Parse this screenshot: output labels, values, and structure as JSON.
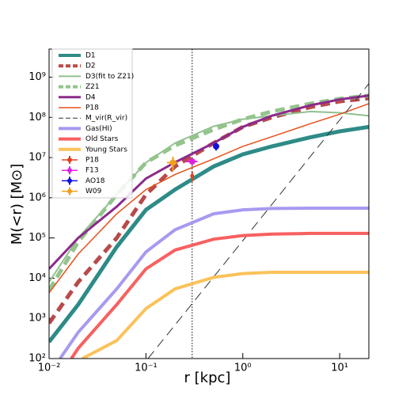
{
  "chart_data": {
    "type": "line",
    "xlabel": "r [kpc]",
    "ylabel": "M(<r) [M⊙]",
    "xscale": "log",
    "yscale": "log",
    "xlim": [
      0.01,
      20
    ],
    "ylim": [
      100,
      5000000000
    ],
    "xticks": [
      {
        "value": 0.01,
        "label": "10⁻²"
      },
      {
        "value": 0.1,
        "label": "10⁻¹"
      },
      {
        "value": 1,
        "label": "10⁰"
      },
      {
        "value": 10,
        "label": "10¹"
      }
    ],
    "yticks": [
      {
        "value": 100,
        "label": "10²"
      },
      {
        "value": 1000,
        "label": "10³"
      },
      {
        "value": 10000,
        "label": "10⁴"
      },
      {
        "value": 100000,
        "label": "10⁵"
      },
      {
        "value": 1000000,
        "label": "10⁶"
      },
      {
        "value": 10000000,
        "label": "10⁷"
      },
      {
        "value": 100000000,
        "label": "10⁸"
      },
      {
        "value": 1000000000,
        "label": "10⁹"
      }
    ],
    "vline": 0.3,
    "legend": "upper left",
    "series": [
      {
        "name": "D1",
        "color": "#2e8b87",
        "linestyle": "solid",
        "x": [
          0.01,
          0.02,
          0.05,
          0.1,
          0.2,
          0.5,
          1,
          2,
          5,
          10,
          20
        ],
        "values": [
          260,
          2200,
          60000,
          500000,
          1600000,
          6000000,
          12000000,
          19000000,
          32000000,
          45000000,
          58000000
        ]
      },
      {
        "name": "D2",
        "color": "#b84a4a",
        "linestyle": "dashed",
        "x": [
          0.01,
          0.02,
          0.05,
          0.1,
          0.2,
          0.5,
          1,
          2,
          5,
          10,
          20
        ],
        "values": [
          760,
          8000,
          100000,
          1200000,
          6000000,
          23000000,
          58000000,
          100000000,
          180000000,
          250000000,
          300000000
        ]
      },
      {
        "name": "D3(fit to Z21)",
        "color": "#90c090",
        "linestyle": "solid",
        "x": [
          0.01,
          0.02,
          0.05,
          0.1,
          0.2,
          0.5,
          1,
          2,
          5,
          10,
          20
        ],
        "values": [
          8000,
          100000,
          1200000,
          7500000,
          23000000,
          60000000,
          90000000,
          110000000,
          140000000,
          130000000,
          110000000
        ]
      },
      {
        "name": "Z21",
        "color": "#94c48c",
        "linestyle": "dashed",
        "x": [
          0.01,
          0.02,
          0.05,
          0.1,
          0.2,
          0.5,
          1,
          2,
          5,
          10,
          20
        ],
        "values": [
          5000,
          80000,
          1200000,
          7500000,
          20000000,
          50000000,
          90000000,
          140000000,
          220000000,
          290000000,
          350000000
        ]
      },
      {
        "name": "D4",
        "color": "#8b2b8b",
        "linestyle": "solid",
        "x": [
          0.01,
          0.02,
          0.05,
          0.1,
          0.2,
          0.5,
          1,
          2,
          5,
          10,
          20
        ],
        "values": [
          17000,
          100000,
          600000,
          3000000,
          7600000,
          23000000,
          58000000,
          110000000,
          200000000,
          280000000,
          350000000
        ]
      },
      {
        "name": "P18",
        "color": "#e8501a",
        "linestyle": "solid",
        "x": [
          0.01,
          0.02,
          0.05,
          0.1,
          0.2,
          0.5,
          1,
          2,
          5,
          10,
          20
        ],
        "values": [
          4300,
          40000,
          400000,
          1600000,
          3800000,
          9300000,
          19000000,
          33000000,
          70000000,
          120000000,
          220000000
        ]
      },
      {
        "name": "M_vir(R_vir)",
        "color": "#333333",
        "linestyle": "dashed",
        "x": [
          0.105,
          1,
          20
        ],
        "values": [
          100,
          86000,
          690000000
        ]
      },
      {
        "name": "Gas(HI)",
        "color": "#a79af0",
        "linestyle": "solid",
        "x": [
          0.013,
          0.02,
          0.05,
          0.1,
          0.2,
          0.5,
          1,
          2,
          5,
          10,
          20
        ],
        "values": [
          100,
          450,
          5400,
          45000,
          160000,
          400000,
          500000,
          540000,
          550000,
          550000,
          550000
        ]
      },
      {
        "name": "Old Stars",
        "color": "#f86060",
        "linestyle": "solid",
        "x": [
          0.017,
          0.02,
          0.05,
          0.1,
          0.2,
          0.5,
          1,
          2,
          5,
          10,
          20
        ],
        "values": [
          100,
          180,
          2200,
          17000,
          50000,
          93000,
          115000,
          125000,
          130000,
          130000,
          130000
        ]
      },
      {
        "name": "Young Stars",
        "color": "#fbc25a",
        "linestyle": "solid",
        "x": [
          0.022,
          0.05,
          0.1,
          0.2,
          0.5,
          1,
          2,
          5,
          10,
          20
        ],
        "values": [
          100,
          280,
          1750,
          5400,
          10500,
          13000,
          14000,
          14000,
          14000,
          14000
        ]
      },
      {
        "name": "P18",
        "color": "#e04020",
        "marker": true,
        "x": [
          0.3
        ],
        "values": [
          3500000
        ],
        "yerr": [
          1000000
        ]
      },
      {
        "name": "F13",
        "color": "#e020e0",
        "marker": true,
        "x": [
          0.3
        ],
        "values": [
          8000000
        ],
        "xerr": [
          0.04
        ],
        "yerr": [
          1500000
        ]
      },
      {
        "name": "AO18",
        "color": "#1010e0",
        "marker": true,
        "x": [
          0.53
        ],
        "values": [
          19000000
        ],
        "xerr": [
          0.03
        ],
        "yerr": [
          4000000
        ]
      },
      {
        "name": "W09",
        "color": "#f0a020",
        "marker": true,
        "x": [
          0.19
        ],
        "values": [
          7500000
        ],
        "xerr": [
          0.025
        ],
        "yerr": [
          3000000
        ]
      }
    ]
  }
}
